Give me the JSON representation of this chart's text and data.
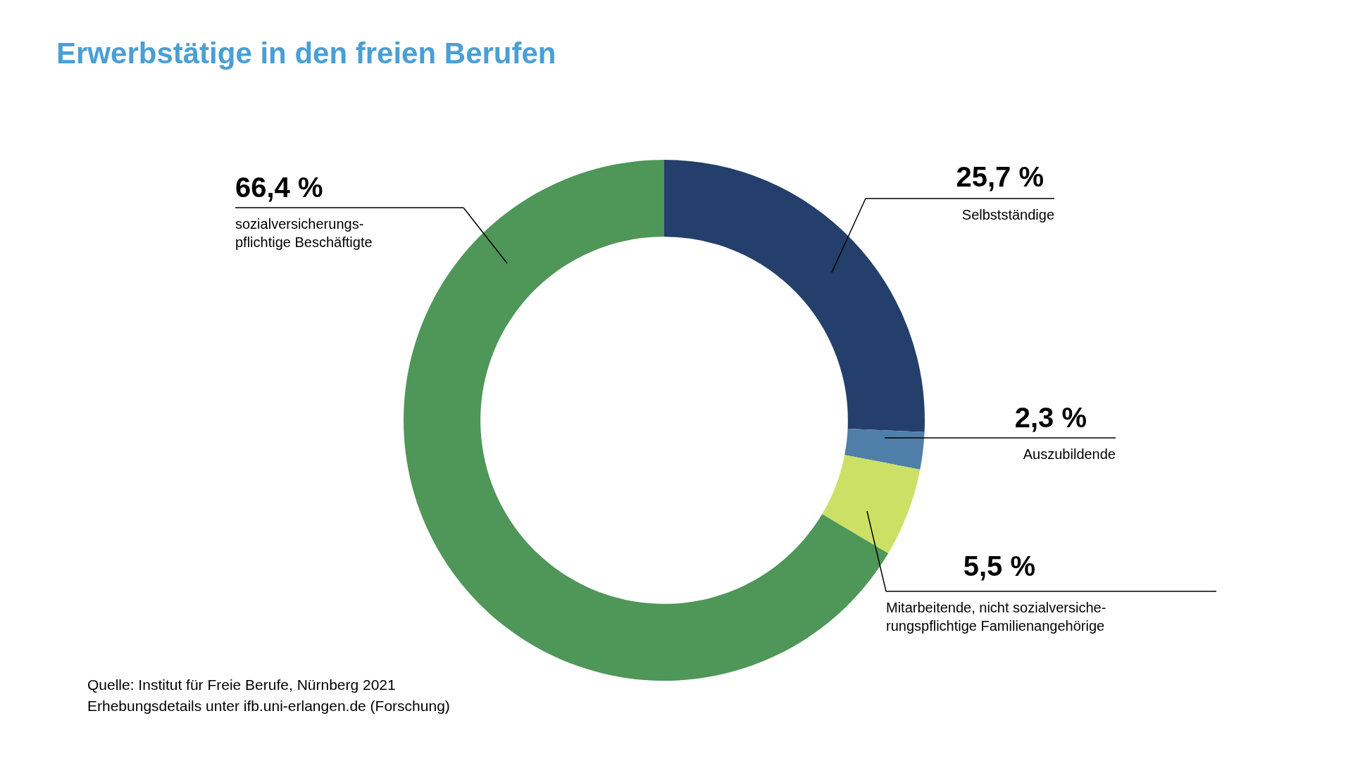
{
  "chart_data": {
    "type": "donut",
    "title": "Erwerbstätige in den freien Berufen",
    "categories": [
      "Selbstständige",
      "Auszubildende",
      "Mitarbeitende, nicht sozialversiche-\nrungspflichtige Familienangehörige",
      "sozialversicherungs-\npflichtige Beschäftigte"
    ],
    "values": [
      25.7,
      2.3,
      5.5,
      66.4
    ],
    "colors": [
      "#243f6b",
      "#4f7fa8",
      "#cce066",
      "#4f9659"
    ],
    "value_labels": [
      "25,7 %",
      "2,3 %",
      "5,5 %",
      "66,4 %"
    ],
    "legend": false,
    "annotations": [
      "Quelle: Institut für Freie Berufe, Nürnberg 2021",
      "Erhebungsdetails unter ifb.uni-erlangen.de (Forschung)"
    ]
  }
}
